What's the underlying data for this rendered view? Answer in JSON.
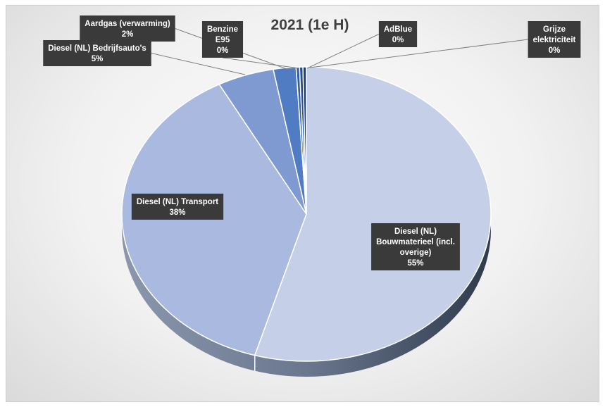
{
  "chart_data": {
    "type": "pie",
    "title": "2021 (1e H)",
    "slices": [
      {
        "name": "Diesel (NL) Bouwmaterieel (incl. overige)",
        "label_lines": [
          "Diesel (NL)",
          "Bouwmaterieel (incl.",
          "overige)"
        ],
        "value": 55,
        "value_label": "55%",
        "color": "#c5d0e8"
      },
      {
        "name": "Diesel (NL) Transport",
        "label_lines": [
          "Diesel (NL) Transport"
        ],
        "value": 38,
        "value_label": "38%",
        "color": "#a9b9df"
      },
      {
        "name": "Diesel (NL) Bedrijfsauto's",
        "label_lines": [
          "Diesel (NL) Bedrijfsauto's"
        ],
        "value": 5,
        "value_label": "5%",
        "color": "#7f9ad0"
      },
      {
        "name": "Aardgas (verwarming)",
        "label_lines": [
          "Aardgas (verwarming)"
        ],
        "value": 2,
        "value_label": "2%",
        "color": "#4f7cc2"
      },
      {
        "name": "Benzine E95",
        "label_lines": [
          "Benzine",
          "E95"
        ],
        "value": 0.3,
        "value_label": "0%",
        "color": "#2f5fa8"
      },
      {
        "name": "AdBlue",
        "label_lines": [
          "AdBlue"
        ],
        "value": 0.3,
        "value_label": "0%",
        "color": "#254f92"
      },
      {
        "name": "Grijze elektriciteit",
        "label_lines": [
          "Grijze",
          "elektriciteit"
        ],
        "value": 0.3,
        "value_label": "0%",
        "color": "#1c3f7a"
      }
    ],
    "legend": "none",
    "data_labels": "callouts"
  }
}
